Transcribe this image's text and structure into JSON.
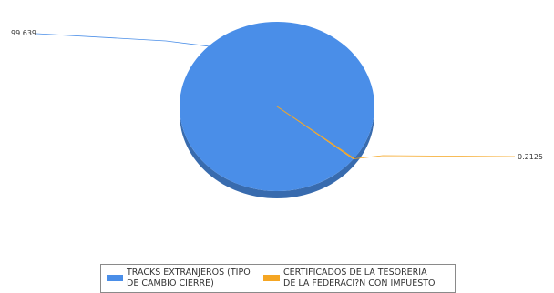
{
  "chart_data": {
    "type": "pie",
    "title": "",
    "series": [
      {
        "name": "TRACKS EXTRANJEROS (TIPO DE CAMBIO CIERRE)",
        "value": 99.639,
        "label": "99.639",
        "color": "#4a8ee8"
      },
      {
        "name": "CERTIFICADOS DE LA TESORERIA DE LA FEDERACI?N CON IMPUESTO",
        "value": 0.2125,
        "label": "0.2125",
        "color": "#f5a623"
      }
    ],
    "legend": {
      "placement": "bottom",
      "items": [
        {
          "label": "TRACKS EXTRANJEROS (TIPO\nDE CAMBIO CIERRE)",
          "color": "#4a8ee8"
        },
        {
          "label": "CERTIFICADOS DE LA TESORERIA\nDE LA FEDERACI?N CON IMPUESTO",
          "color": "#f5a623"
        }
      ]
    }
  }
}
